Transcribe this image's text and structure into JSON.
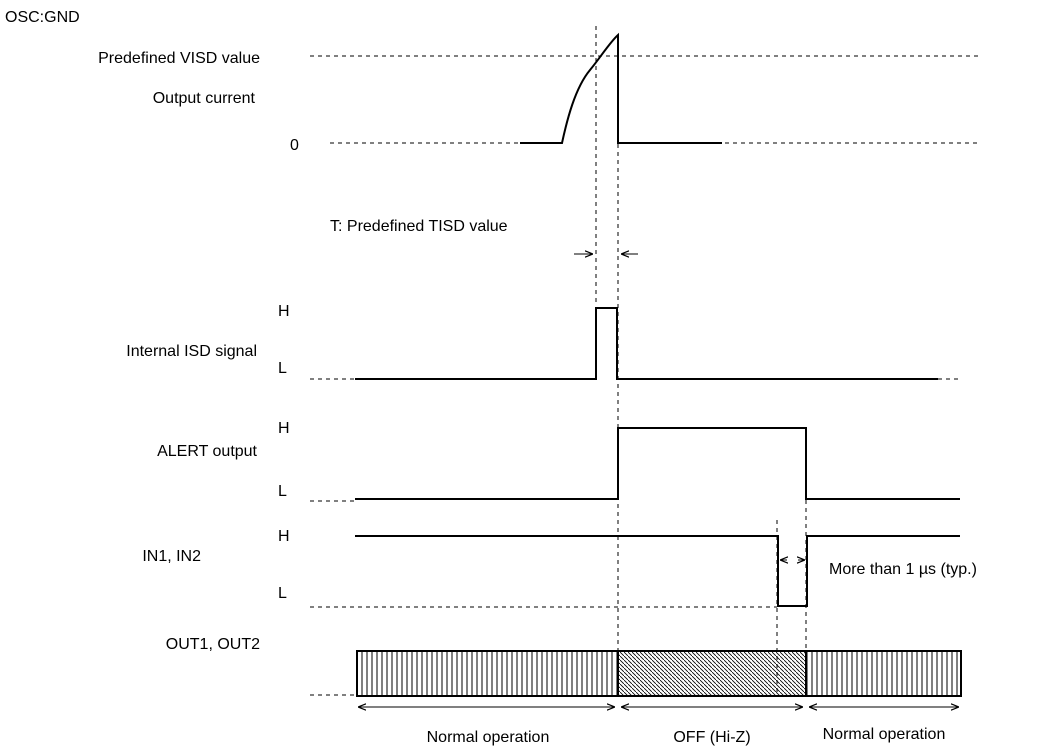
{
  "corner_label": "OSC:GND",
  "current_section": {
    "visd_label": "Predefined VISD value",
    "output_current_label": "Output current",
    "zero_label": "0",
    "tisd_label": "T: Predefined TISD value"
  },
  "signals": {
    "isd": {
      "name": "Internal ISD signal",
      "high": "H",
      "low": "L"
    },
    "alert": {
      "name": "ALERT output",
      "high": "H",
      "low": "L"
    },
    "input": {
      "name": "IN1, IN2",
      "high": "H",
      "low": "L",
      "note": "More than 1 µs (typ.)"
    },
    "output": {
      "name": "OUT1, OUT2"
    }
  },
  "states": {
    "normal_1": "Normal operation",
    "off": "OFF (Hi-Z)",
    "normal_2": "Normal operation"
  }
}
